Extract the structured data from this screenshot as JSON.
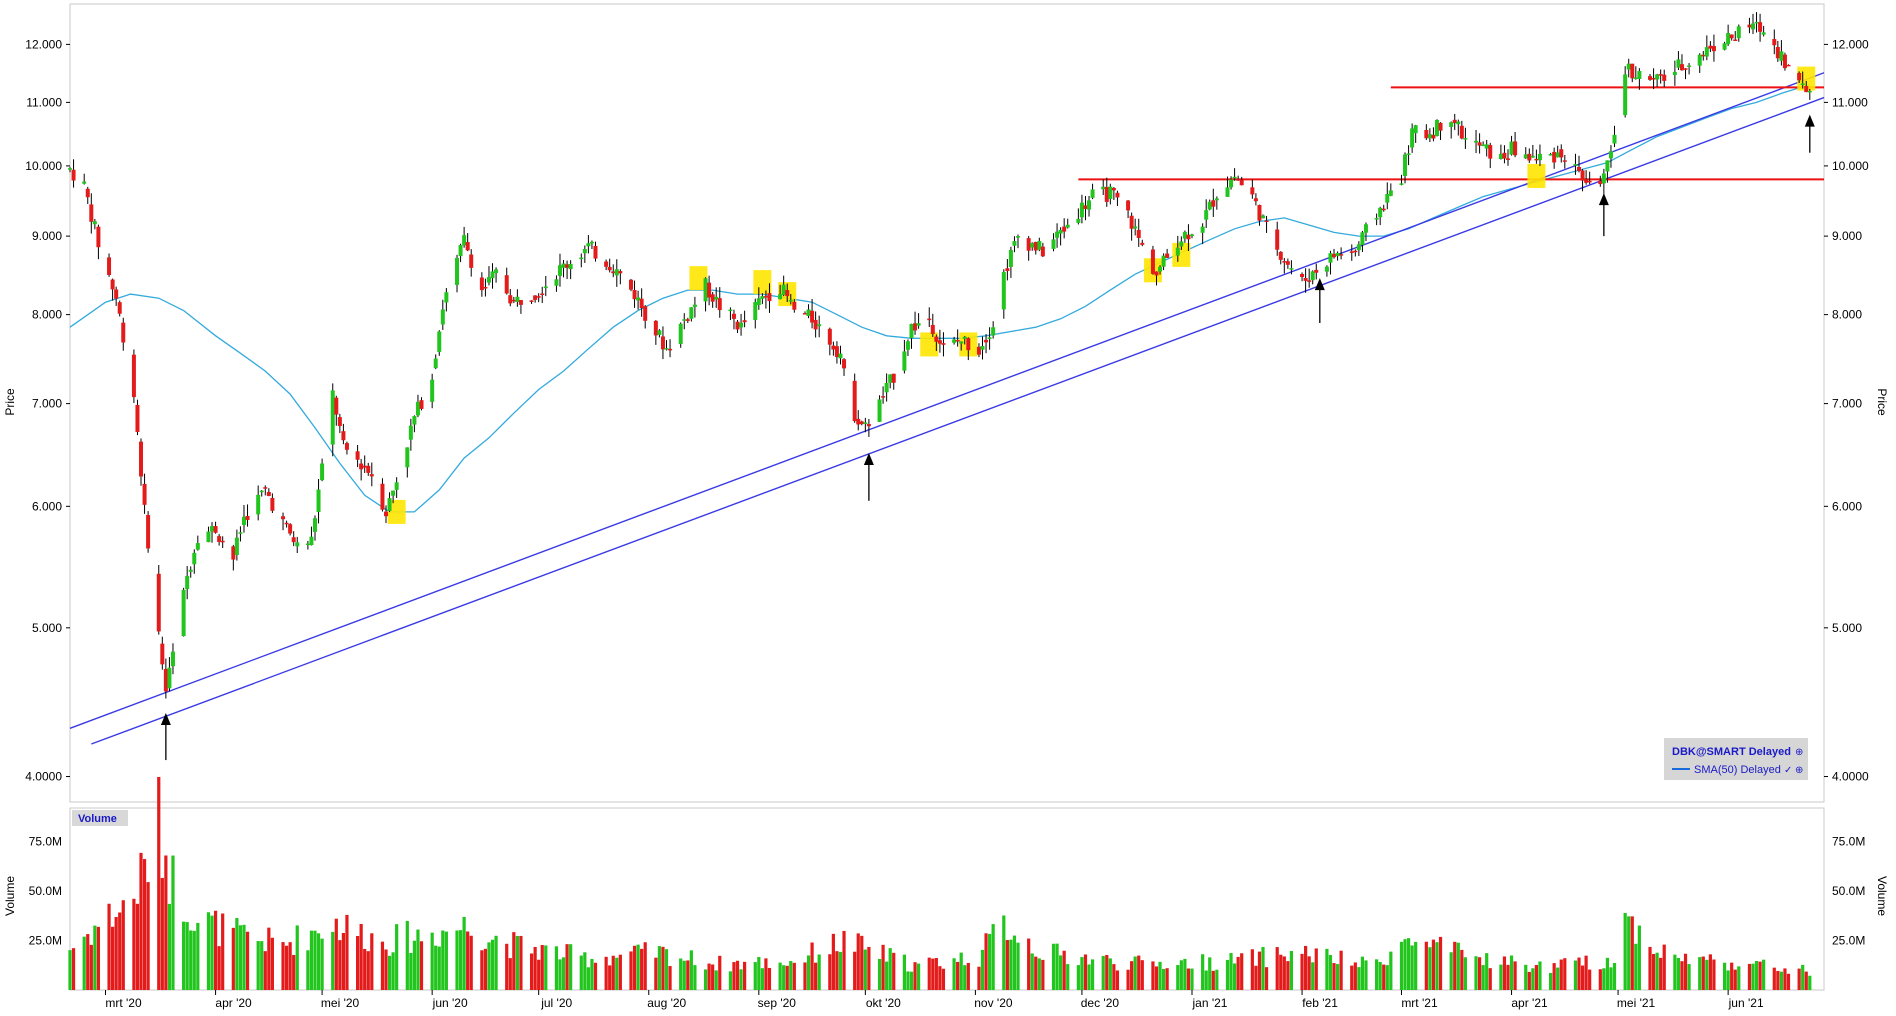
{
  "chart_data": {
    "type": "candlestick",
    "symbol_legend": "DBK@SMART Delayed",
    "sma_legend": "SMA(50) Delayed",
    "legend_marks": [
      "⊕",
      "✓",
      "⊕"
    ],
    "price_axis_label": "Price",
    "volume_panel_label": "Volume",
    "volume_axis_label": "Volume",
    "y_scale": "log",
    "ylim": [
      3.85,
      12.75
    ],
    "price_ticks": [
      {
        "value": 4.0,
        "label": "4.0000"
      },
      {
        "value": 5.0,
        "label": "5.000"
      },
      {
        "value": 6.0,
        "label": "6.000"
      },
      {
        "value": 7.0,
        "label": "7.000"
      },
      {
        "value": 8.0,
        "label": "8.000"
      },
      {
        "value": 9.0,
        "label": "9.000"
      },
      {
        "value": 10.0,
        "label": "10.000"
      },
      {
        "value": 11.0,
        "label": "11.000"
      },
      {
        "value": 12.0,
        "label": "12.000"
      }
    ],
    "volume_ylim": [
      0,
      92
    ],
    "volume_ticks": [
      {
        "value": 25,
        "label": "25.0M"
      },
      {
        "value": 50,
        "label": "50.0M"
      },
      {
        "value": 75,
        "label": "75.0M"
      }
    ],
    "x_ticks": [
      {
        "date": "2020-03-01",
        "label": "mrt '20"
      },
      {
        "date": "2020-04-01",
        "label": "apr '20"
      },
      {
        "date": "2020-05-01",
        "label": "mei '20"
      },
      {
        "date": "2020-06-01",
        "label": "jun '20"
      },
      {
        "date": "2020-07-01",
        "label": "jul '20"
      },
      {
        "date": "2020-08-01",
        "label": "aug '20"
      },
      {
        "date": "2020-09-01",
        "label": "sep '20"
      },
      {
        "date": "2020-10-01",
        "label": "okt '20"
      },
      {
        "date": "2020-11-01",
        "label": "nov '20"
      },
      {
        "date": "2020-12-01",
        "label": "dec '20"
      },
      {
        "date": "2021-01-01",
        "label": "jan '21"
      },
      {
        "date": "2021-02-01",
        "label": "feb '21"
      },
      {
        "date": "2021-03-01",
        "label": "mrt '21"
      },
      {
        "date": "2021-04-01",
        "label": "apr '21"
      },
      {
        "date": "2021-05-01",
        "label": "mei '21"
      },
      {
        "date": "2021-06-01",
        "label": "jun '21"
      }
    ],
    "x_range": [
      "2020-02-20",
      "2021-06-28"
    ],
    "colors": {
      "up": "#22c51e",
      "down": "#e41b1b",
      "sma": "#33aadd",
      "trendline": "#3a3ae6",
      "resistance": "#ee1111",
      "highlight": "#ffe600",
      "arrow": "#000000",
      "legend_text": "#1a1ac8"
    },
    "price_path": [
      [
        "2020-02-20",
        9.95
      ],
      [
        "2020-02-24",
        9.7
      ],
      [
        "2020-02-28",
        8.9
      ],
      [
        "2020-03-04",
        8.2
      ],
      [
        "2020-03-09",
        7.1
      ],
      [
        "2020-03-12",
        5.95
      ],
      [
        "2020-03-16",
        4.95
      ],
      [
        "2020-03-18",
        4.55
      ],
      [
        "2020-03-20",
        4.8
      ],
      [
        "2020-03-24",
        5.4
      ],
      [
        "2020-03-27",
        5.75
      ],
      [
        "2020-04-01",
        5.8
      ],
      [
        "2020-04-06",
        5.55
      ],
      [
        "2020-04-09",
        5.9
      ],
      [
        "2020-04-15",
        6.15
      ],
      [
        "2020-04-20",
        5.85
      ],
      [
        "2020-04-24",
        5.65
      ],
      [
        "2020-04-28",
        5.7
      ],
      [
        "2020-05-01",
        6.35
      ],
      [
        "2020-05-04",
        7.1
      ],
      [
        "2020-05-07",
        6.55
      ],
      [
        "2020-05-12",
        6.4
      ],
      [
        "2020-05-15",
        6.3
      ],
      [
        "2020-05-19",
        5.95
      ],
      [
        "2020-05-22",
        6.25
      ],
      [
        "2020-05-27",
        6.85
      ],
      [
        "2020-06-01",
        7.3
      ],
      [
        "2020-06-04",
        8.1
      ],
      [
        "2020-06-08",
        8.65
      ],
      [
        "2020-06-10",
        8.95
      ],
      [
        "2020-06-15",
        8.3
      ],
      [
        "2020-06-19",
        8.5
      ],
      [
        "2020-06-24",
        8.15
      ],
      [
        "2020-07-01",
        8.3
      ],
      [
        "2020-07-08",
        8.6
      ],
      [
        "2020-07-15",
        8.85
      ],
      [
        "2020-07-22",
        8.6
      ],
      [
        "2020-07-28",
        8.25
      ],
      [
        "2020-08-03",
        7.8
      ],
      [
        "2020-08-06",
        7.6
      ],
      [
        "2020-08-12",
        8.0
      ],
      [
        "2020-08-17",
        8.35
      ],
      [
        "2020-08-21",
        8.1
      ],
      [
        "2020-08-27",
        7.85
      ],
      [
        "2020-09-02",
        8.2
      ],
      [
        "2020-09-07",
        8.35
      ],
      [
        "2020-09-11",
        8.05
      ],
      [
        "2020-09-16",
        7.95
      ],
      [
        "2020-09-21",
        7.7
      ],
      [
        "2020-09-24",
        7.55
      ],
      [
        "2020-09-25",
        7.3
      ],
      [
        "2020-09-28",
        6.9
      ],
      [
        "2020-10-01",
        6.75
      ],
      [
        "2020-10-05",
        7.0
      ],
      [
        "2020-10-09",
        7.3
      ],
      [
        "2020-10-14",
        7.85
      ],
      [
        "2020-10-19",
        7.95
      ],
      [
        "2020-10-23",
        7.6
      ],
      [
        "2020-10-28",
        7.7
      ],
      [
        "2020-11-02",
        7.6
      ],
      [
        "2020-11-06",
        7.9
      ],
      [
        "2020-11-09",
        8.5
      ],
      [
        "2020-11-13",
        9.0
      ],
      [
        "2020-11-20",
        8.8
      ],
      [
        "2020-11-26",
        9.1
      ],
      [
        "2020-12-01",
        9.4
      ],
      [
        "2020-12-04",
        9.55
      ],
      [
        "2020-12-09",
        9.6
      ],
      [
        "2020-12-14",
        9.3
      ],
      [
        "2020-12-18",
        8.85
      ],
      [
        "2020-12-22",
        8.5
      ],
      [
        "2020-12-28",
        8.95
      ],
      [
        "2021-01-04",
        9.2
      ],
      [
        "2021-01-08",
        9.6
      ],
      [
        "2021-01-13",
        9.85
      ],
      [
        "2021-01-18",
        9.55
      ],
      [
        "2021-01-22",
        9.1
      ],
      [
        "2021-01-27",
        8.7
      ],
      [
        "2021-02-01",
        8.4
      ],
      [
        "2021-02-05",
        8.55
      ],
      [
        "2021-02-10",
        8.75
      ],
      [
        "2021-02-16",
        8.8
      ],
      [
        "2021-02-22",
        9.3
      ],
      [
        "2021-03-01",
        9.85
      ],
      [
        "2021-03-04",
        10.5
      ],
      [
        "2021-03-09",
        10.5
      ],
      [
        "2021-03-15",
        10.8
      ],
      [
        "2021-03-19",
        10.4
      ],
      [
        "2021-03-23",
        10.3
      ],
      [
        "2021-03-29",
        10.1
      ],
      [
        "2021-04-01",
        10.25
      ],
      [
        "2021-04-08",
        10.1
      ],
      [
        "2021-04-15",
        10.2
      ],
      [
        "2021-04-20",
        9.9
      ],
      [
        "2021-04-23",
        9.7
      ],
      [
        "2021-04-27",
        9.85
      ],
      [
        "2021-04-29",
        10.1
      ],
      [
        "2021-05-03",
        11.6
      ],
      [
        "2021-05-07",
        11.45
      ],
      [
        "2021-05-12",
        11.35
      ],
      [
        "2021-05-18",
        11.6
      ],
      [
        "2021-05-24",
        11.8
      ],
      [
        "2021-05-28",
        12.0
      ],
      [
        "2021-06-03",
        12.15
      ],
      [
        "2021-06-08",
        12.35
      ],
      [
        "2021-06-11",
        12.25
      ],
      [
        "2021-06-15",
        11.9
      ],
      [
        "2021-06-18",
        11.6
      ],
      [
        "2021-06-21",
        11.3
      ],
      [
        "2021-06-24",
        11.2
      ]
    ],
    "sma_path": [
      [
        "2020-02-20",
        7.85
      ],
      [
        "2020-03-01",
        8.15
      ],
      [
        "2020-03-08",
        8.25
      ],
      [
        "2020-03-16",
        8.2
      ],
      [
        "2020-03-23",
        8.05
      ],
      [
        "2020-04-01",
        7.75
      ],
      [
        "2020-04-08",
        7.55
      ],
      [
        "2020-04-15",
        7.35
      ],
      [
        "2020-04-22",
        7.1
      ],
      [
        "2020-04-29",
        6.75
      ],
      [
        "2020-05-06",
        6.4
      ],
      [
        "2020-05-13",
        6.1
      ],
      [
        "2020-05-20",
        5.95
      ],
      [
        "2020-05-27",
        5.95
      ],
      [
        "2020-06-03",
        6.15
      ],
      [
        "2020-06-10",
        6.45
      ],
      [
        "2020-06-17",
        6.65
      ],
      [
        "2020-06-24",
        6.9
      ],
      [
        "2020-07-01",
        7.15
      ],
      [
        "2020-07-08",
        7.35
      ],
      [
        "2020-07-15",
        7.6
      ],
      [
        "2020-07-22",
        7.85
      ],
      [
        "2020-07-29",
        8.05
      ],
      [
        "2020-08-05",
        8.2
      ],
      [
        "2020-08-12",
        8.3
      ],
      [
        "2020-08-19",
        8.3
      ],
      [
        "2020-08-26",
        8.25
      ],
      [
        "2020-09-02",
        8.25
      ],
      [
        "2020-09-09",
        8.2
      ],
      [
        "2020-09-16",
        8.15
      ],
      [
        "2020-09-23",
        8.0
      ],
      [
        "2020-09-30",
        7.85
      ],
      [
        "2020-10-07",
        7.75
      ],
      [
        "2020-10-14",
        7.72
      ],
      [
        "2020-10-21",
        7.72
      ],
      [
        "2020-10-28",
        7.72
      ],
      [
        "2020-11-04",
        7.75
      ],
      [
        "2020-11-11",
        7.8
      ],
      [
        "2020-11-18",
        7.85
      ],
      [
        "2020-11-25",
        7.95
      ],
      [
        "2020-12-02",
        8.1
      ],
      [
        "2020-12-09",
        8.3
      ],
      [
        "2020-12-16",
        8.5
      ],
      [
        "2020-12-23",
        8.65
      ],
      [
        "2020-12-30",
        8.8
      ],
      [
        "2021-01-06",
        8.95
      ],
      [
        "2021-01-13",
        9.1
      ],
      [
        "2021-01-20",
        9.2
      ],
      [
        "2021-01-27",
        9.25
      ],
      [
        "2021-02-03",
        9.15
      ],
      [
        "2021-02-10",
        9.05
      ],
      [
        "2021-02-17",
        9.0
      ],
      [
        "2021-02-24",
        9.0
      ],
      [
        "2021-03-03",
        9.1
      ],
      [
        "2021-03-10",
        9.25
      ],
      [
        "2021-03-17",
        9.4
      ],
      [
        "2021-03-24",
        9.55
      ],
      [
        "2021-03-31",
        9.65
      ],
      [
        "2021-04-07",
        9.75
      ],
      [
        "2021-04-14",
        9.85
      ],
      [
        "2021-04-21",
        9.95
      ],
      [
        "2021-04-28",
        10.05
      ],
      [
        "2021-05-05",
        10.25
      ],
      [
        "2021-05-12",
        10.45
      ],
      [
        "2021-05-19",
        10.6
      ],
      [
        "2021-05-26",
        10.75
      ],
      [
        "2021-06-02",
        10.9
      ],
      [
        "2021-06-09",
        11.0
      ],
      [
        "2021-06-16",
        11.15
      ],
      [
        "2021-06-24",
        11.3
      ]
    ],
    "volume_path": [
      [
        "2020-02-20",
        22
      ],
      [
        "2020-03-01",
        38
      ],
      [
        "2020-03-08",
        46
      ],
      [
        "2020-03-12",
        64
      ],
      [
        "2020-03-16",
        88
      ],
      [
        "2020-03-20",
        58
      ],
      [
        "2020-03-27",
        38
      ],
      [
        "2020-04-06",
        30
      ],
      [
        "2020-04-20",
        24
      ],
      [
        "2020-05-04",
        36
      ],
      [
        "2020-05-18",
        26
      ],
      [
        "2020-06-01",
        30
      ],
      [
        "2020-06-10",
        34
      ],
      [
        "2020-06-24",
        24
      ],
      [
        "2020-07-15",
        17
      ],
      [
        "2020-08-03",
        20
      ],
      [
        "2020-08-20",
        14
      ],
      [
        "2020-09-10",
        15
      ],
      [
        "2020-09-25",
        26
      ],
      [
        "2020-10-15",
        13
      ],
      [
        "2020-11-02",
        18
      ],
      [
        "2020-11-09",
        36
      ],
      [
        "2020-11-20",
        20
      ],
      [
        "2020-12-15",
        14
      ],
      [
        "2021-01-10",
        15
      ],
      [
        "2021-02-01",
        20
      ],
      [
        "2021-02-20",
        13
      ],
      [
        "2021-03-03",
        26
      ],
      [
        "2021-03-20",
        18
      ],
      [
        "2021-04-10",
        12
      ],
      [
        "2021-04-30",
        16
      ],
      [
        "2021-05-03",
        38
      ],
      [
        "2021-05-15",
        18
      ],
      [
        "2021-06-05",
        14
      ],
      [
        "2021-06-24",
        10
      ]
    ],
    "trendlines": [
      [
        [
          "2020-02-20",
          4.3
        ],
        [
          "2021-06-28",
          11.5
        ]
      ],
      [
        [
          "2020-02-26",
          4.2
        ],
        [
          "2021-06-28",
          11.08
        ]
      ]
    ],
    "resistance_lines": [
      {
        "from": "2021-02-26",
        "to": "2021-06-28",
        "value": 11.25
      },
      {
        "from": "2020-11-30",
        "to": "2021-06-28",
        "value": 9.8
      }
    ],
    "highlights": [
      [
        "2020-05-22",
        5.95
      ],
      [
        "2020-08-15",
        8.45
      ],
      [
        "2020-09-02",
        8.4
      ],
      [
        "2020-09-09",
        8.25
      ],
      [
        "2020-10-19",
        7.65
      ],
      [
        "2020-10-30",
        7.65
      ],
      [
        "2020-12-21",
        8.55
      ],
      [
        "2020-12-29",
        8.75
      ],
      [
        "2021-04-08",
        9.85
      ],
      [
        "2021-06-23",
        11.4
      ]
    ],
    "arrows": [
      {
        "date": "2020-03-18",
        "from": 4.1,
        "to": 4.4
      },
      {
        "date": "2020-10-02",
        "from": 6.05,
        "to": 6.5
      },
      {
        "date": "2021-02-06",
        "from": 7.9,
        "to": 8.45
      },
      {
        "date": "2021-04-27",
        "from": 9.0,
        "to": 9.6
      },
      {
        "date": "2021-06-24",
        "from": 10.2,
        "to": 10.8
      }
    ]
  }
}
